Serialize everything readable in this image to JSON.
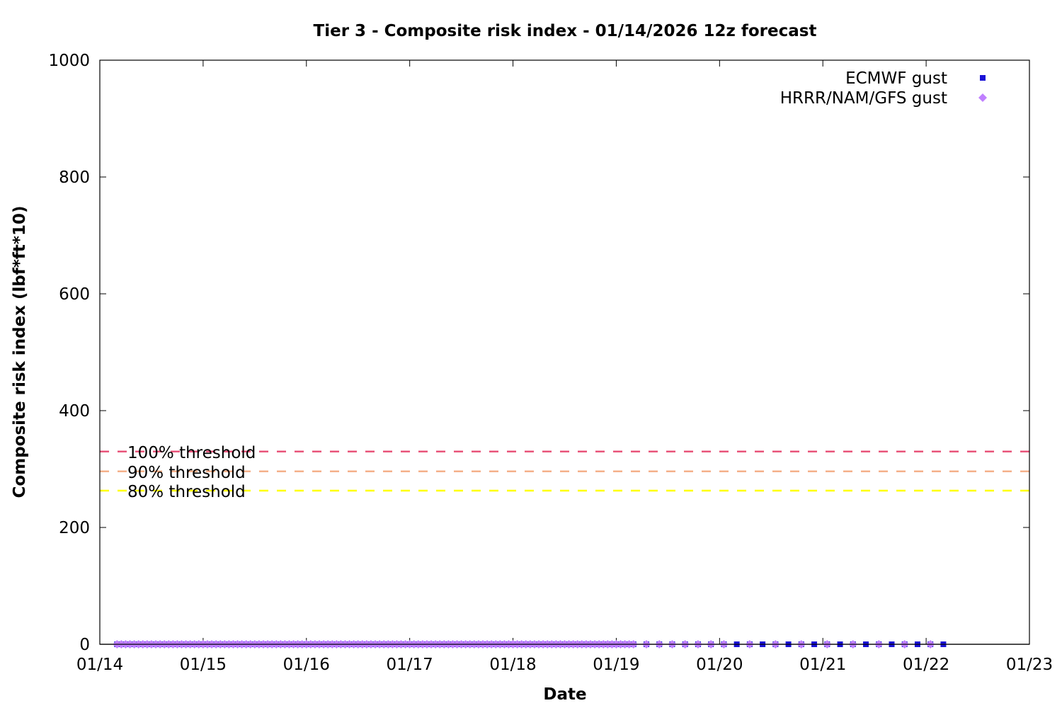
{
  "chart_data": {
    "type": "scatter",
    "title": "Tier 3 - Composite risk index - 01/14/2026 12z forecast",
    "xlabel": "Date",
    "ylabel": "Composite risk index (lbf*ft*10)",
    "xlim": [
      "01/14",
      "01/23"
    ],
    "ylim": [
      0,
      1000
    ],
    "x_ticks": [
      "01/14",
      "01/15",
      "01/16",
      "01/17",
      "01/18",
      "01/19",
      "01/20",
      "01/21",
      "01/22",
      "01/23"
    ],
    "y_ticks": [
      0,
      200,
      400,
      600,
      800,
      1000
    ],
    "grid": false,
    "legend_position": "top-right",
    "series": [
      {
        "name": "ECMWF gust",
        "marker": "square",
        "color": "#1a12d6",
        "segments": [
          {
            "start": "01/14 04:00",
            "end": "01/19 04:00",
            "step_hours": 1
          },
          {
            "start": "01/19 07:00",
            "end": "01/22 04:00",
            "step_hours": 3
          }
        ],
        "y": 0
      },
      {
        "name": "HRRR/NAM/GFS gust",
        "marker": "diamond",
        "color": "#c080ff",
        "segments": [
          {
            "start": "01/14 04:00",
            "end": "01/19 04:00",
            "step_hours": 1
          },
          {
            "start": "01/19 07:00",
            "end": "01/20 01:00",
            "step_hours": 3
          },
          {
            "start": "01/20 07:00",
            "end": "01/22 01:00",
            "step_hours": 6
          }
        ],
        "y": 0
      }
    ],
    "thresholds": [
      {
        "label": "100% threshold",
        "value": 330,
        "color": "#e8547a"
      },
      {
        "label": "90% threshold",
        "value": 296,
        "color": "#f4b08a"
      },
      {
        "label": "80% threshold",
        "value": 263,
        "color": "#ffff00"
      }
    ]
  }
}
